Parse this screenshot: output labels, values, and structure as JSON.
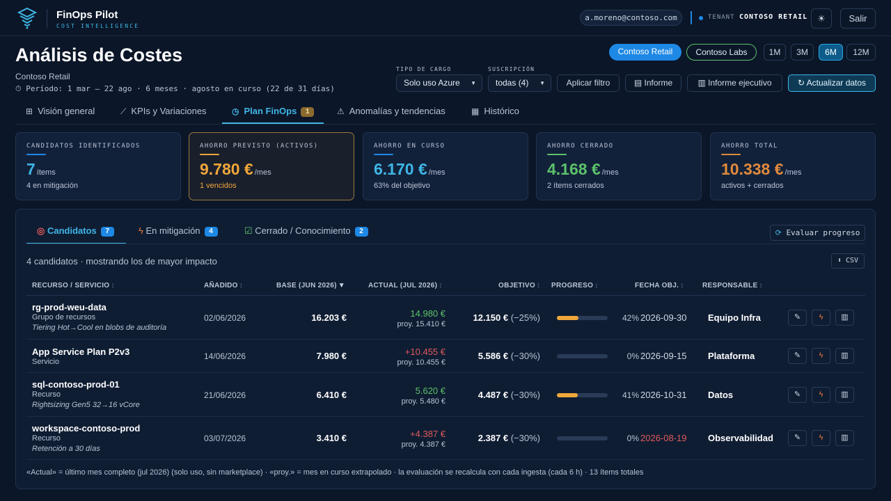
{
  "brand": {
    "name": "FinOps Pilot",
    "subtitle": "COST INTELLIGENCE"
  },
  "topbar": {
    "user_email": "a.moreno@contoso.com",
    "tenant_label": "TENANT",
    "tenant_name": "CONTOSO RETAIL",
    "theme_icon": "sun-icon",
    "logout_label": "Salir"
  },
  "header": {
    "title": "Análisis de Costes",
    "client": "Contoso Retail",
    "period": "⏱ Período: 1 mar – 22 ago · 6 meses · agosto en curso (22 de 31 días)"
  },
  "tenants": [
    {
      "label": "Contoso Retail",
      "active": true
    },
    {
      "label": "Contoso Labs",
      "active": false
    }
  ],
  "ranges": [
    {
      "label": "1M",
      "active": false
    },
    {
      "label": "3M",
      "active": false
    },
    {
      "label": "6M",
      "active": true
    },
    {
      "label": "12M",
      "active": false
    }
  ],
  "filters": {
    "charge_type_label": "TIPO DE CARGO",
    "charge_type_value": "Solo uso Azure",
    "subscription_label": "SUSCRIPCIÓN",
    "subscription_value": "todas (4)"
  },
  "actions": {
    "apply_filter": "Aplicar filtro",
    "report": "Informe",
    "exec_report": "Informe ejecutivo",
    "refresh": "Actualizar datos"
  },
  "tabs": [
    {
      "label": "Visión general",
      "icon": "grid-icon"
    },
    {
      "label": "KPIs y Variaciones",
      "icon": "trend-icon"
    },
    {
      "label": "Plan FinOps",
      "icon": "clock-icon",
      "badge": "1",
      "active": true
    },
    {
      "label": "Anomalías y tendencias",
      "icon": "warning-icon"
    },
    {
      "label": "Histórico",
      "icon": "calendar-icon"
    }
  ],
  "kpis": [
    {
      "label": "CANDIDATOS IDENTIFICADOS",
      "value": "7",
      "unit": "ítems",
      "sub": "4 en mitigación",
      "color": "#3fb6e6"
    },
    {
      "label": "AHORRO PREVISTO (ACTIVOS)",
      "value": "9.780 €",
      "unit": "/mes",
      "sub": "1 vencidos",
      "color": "#f0a73a"
    },
    {
      "label": "AHORRO EN CURSO",
      "value": "6.170 €",
      "unit": "/mes",
      "sub": "63% del objetivo",
      "color": "#3fb6e6"
    },
    {
      "label": "AHORRO CERRADO",
      "value": "4.168 €",
      "unit": "/mes",
      "sub": "2 ítems cerrados",
      "color": "#5cc26a"
    },
    {
      "label": "AHORRO TOTAL",
      "value": "10.338 €",
      "unit": "/mes",
      "sub": "activos + cerrados",
      "color": "#e08a3c"
    }
  ],
  "subtabs": [
    {
      "label": "Candidatos",
      "count": "7",
      "icon": "target-icon"
    },
    {
      "label": "En mitigación",
      "count": "4",
      "icon": "bolt-icon"
    },
    {
      "label": "Cerrado / Conocimiento",
      "count": "2",
      "icon": "check-icon"
    }
  ],
  "panel": {
    "evaluate_label": "Evaluar progreso",
    "count_text": "4 candidatos · mostrando los de mayor impacto",
    "csv_label": "⬇ CSV",
    "footnote": "«Actual» = último mes completo (jul 2026) (solo uso, sin marketplace) · «proy.» = mes en curso extrapolado · la evaluación se recalcula con cada ingesta (cada 6 h) · 13 ítems totales"
  },
  "table": {
    "headers": [
      "RECURSO / SERVICIO",
      "AÑADIDO",
      "BASE (JUN 2026)",
      "ACTUAL (JUL 2026)",
      "OBJETIVO",
      "PROGRESO",
      "FECHA OBJ.",
      "RESPONSABLE"
    ],
    "rows": [
      {
        "name": "rg-prod-weu-data",
        "type": "Grupo de recursos",
        "note": "Tiering Hot→Cool en blobs de auditoría",
        "added": "02/06/2026",
        "base": "16.203 €",
        "actual": "14.980 €",
        "actual_color": "#5cc26a",
        "proj": "proy. 15.410 €",
        "target": "12.150 €",
        "target_pct": "(−25%)",
        "progress": 42,
        "progress_label": "42%",
        "date": "2026-09-30",
        "date_overdue": false,
        "owner": "Equipo Infra"
      },
      {
        "name": "App Service Plan P2v3",
        "type": "Servicio",
        "note": "",
        "added": "14/06/2026",
        "base": "7.980 €",
        "actual": "+10.455 €",
        "actual_color": "#e05a5a",
        "proj": "proy. 10.455 €",
        "target": "5.586 €",
        "target_pct": "(−30%)",
        "progress": 0,
        "progress_label": "0%",
        "date": "2026-09-15",
        "date_overdue": false,
        "owner": "Plataforma"
      },
      {
        "name": "sql-contoso-prod-01",
        "type": "Recurso",
        "note": "Rightsizing Gen5 32→16 vCore",
        "added": "21/06/2026",
        "base": "6.410 €",
        "actual": "5.620 €",
        "actual_color": "#5cc26a",
        "proj": "proy. 5.480 €",
        "target": "4.487 €",
        "target_pct": "(−30%)",
        "progress": 41,
        "progress_label": "41%",
        "date": "2026-10-31",
        "date_overdue": false,
        "owner": "Datos"
      },
      {
        "name": "workspace-contoso-prod",
        "type": "Recurso",
        "note": "Retención a 30 días",
        "added": "03/07/2026",
        "base": "3.410 €",
        "actual": "+4.387 €",
        "actual_color": "#e05a5a",
        "proj": "proy. 4.387 €",
        "target": "2.387 €",
        "target_pct": "(−30%)",
        "progress": 0,
        "progress_label": "0%",
        "date": "2026-08-19",
        "date_overdue": true,
        "owner": "Observabilidad"
      }
    ]
  }
}
